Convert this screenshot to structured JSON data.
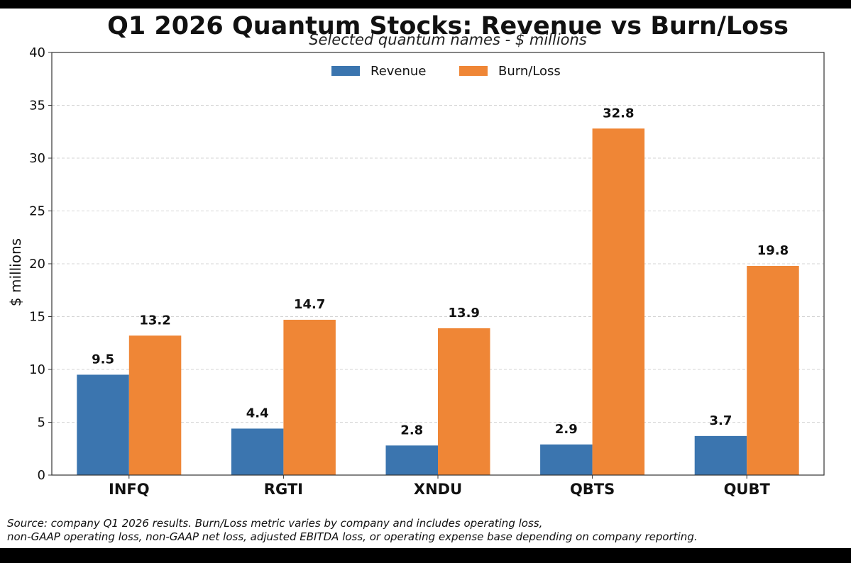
{
  "chart_data": {
    "type": "bar",
    "title": "Q1 2026 Quantum Stocks: Revenue vs Burn/Loss",
    "subtitle": "Selected quantum names - $ millions",
    "xlabel": "",
    "ylabel": "$ millions",
    "ylim": [
      0,
      40
    ],
    "yticks": [
      0,
      5,
      10,
      15,
      20,
      25,
      30,
      35,
      40
    ],
    "grid": true,
    "legend_position": "top-center",
    "categories": [
      "INFQ",
      "RGTI",
      "XNDU",
      "QBTS",
      "QUBT"
    ],
    "series": [
      {
        "name": "Revenue",
        "color": "#3b75af",
        "values": [
          9.5,
          4.4,
          2.8,
          2.9,
          3.7
        ]
      },
      {
        "name": "Burn/Loss",
        "color": "#ef8636",
        "values": [
          13.2,
          14.7,
          13.9,
          32.8,
          19.8
        ]
      }
    ]
  },
  "source_lines": [
    "Source: company Q1 2026 results. Burn/Loss metric varies by company and includes operating loss,",
    "non-GAAP operating loss, non-GAAP net loss, adjusted EBITDA loss, or operating expense base depending on company reporting."
  ]
}
